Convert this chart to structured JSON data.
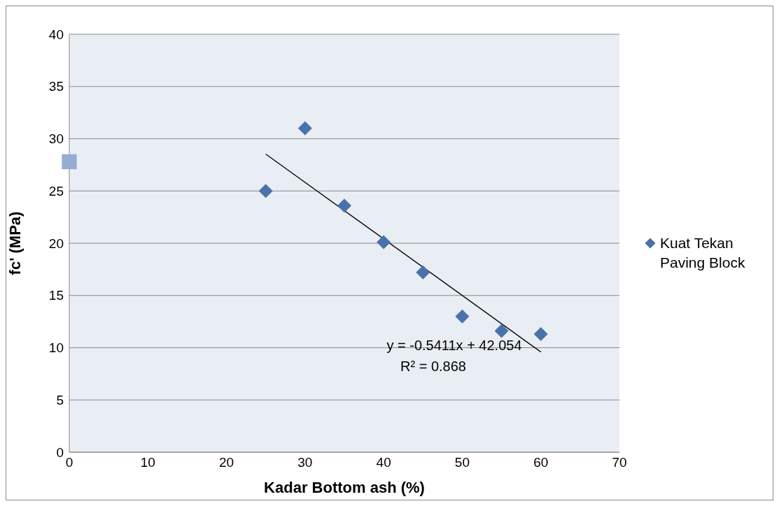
{
  "chart_data": {
    "type": "scatter",
    "xlabel": "Kadar Bottom ash (%)",
    "ylabel": "fc' (MPa)",
    "xlim": [
      0,
      70
    ],
    "xticks": [
      0,
      10,
      20,
      30,
      40,
      50,
      60,
      70
    ],
    "ylim": [
      0,
      40
    ],
    "yticks": [
      0,
      5,
      10,
      15,
      20,
      25,
      30,
      35,
      40
    ],
    "grid": "y",
    "legend": "right",
    "series": [
      {
        "name": "Kuat Tekan Paving Block",
        "marker": "diamond",
        "color": "#4a72aa",
        "x": [
          25,
          30,
          35,
          40,
          45,
          50,
          55,
          60
        ],
        "values": [
          25.0,
          31.0,
          23.6,
          20.1,
          17.2,
          13.0,
          11.6,
          11.3
        ]
      },
      {
        "marker": "square",
        "color": "#97acd3",
        "x": [
          0
        ],
        "values": [
          27.8
        ]
      },
      {
        "type": "line",
        "marker": "none",
        "color": "#000000",
        "x": [
          25,
          60
        ],
        "values": [
          28.53,
          9.59
        ]
      }
    ],
    "annotations": [
      "y = -0.5411x + 42.054",
      "R² = 0.868"
    ]
  }
}
